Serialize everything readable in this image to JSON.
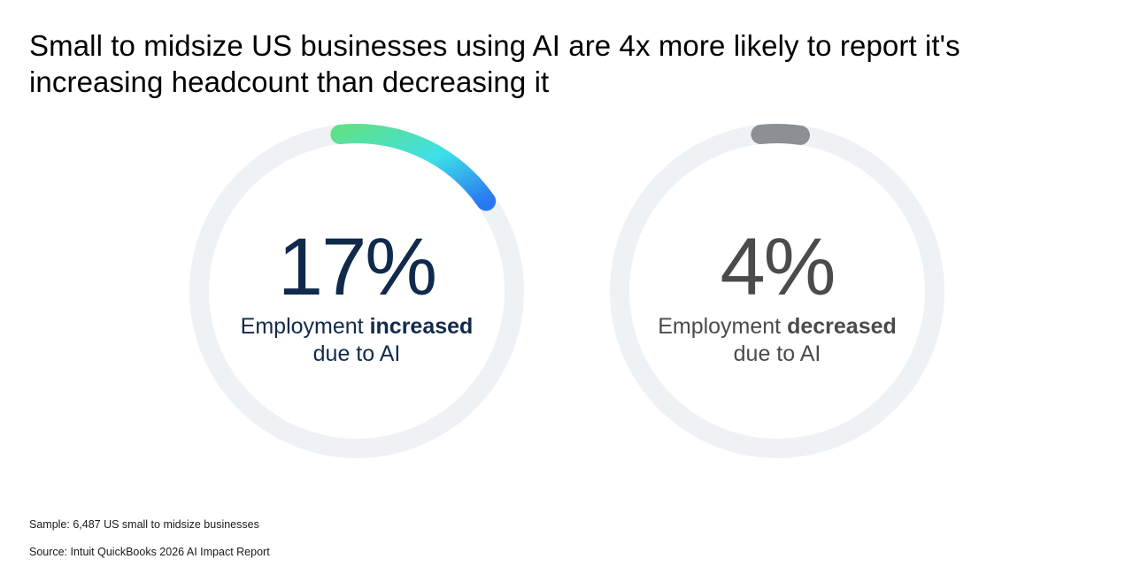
{
  "title": "Small to midsize US businesses using AI are 4x more likely to report it's increasing headcount than decreasing it",
  "gauges": [
    {
      "value": 17,
      "value_label": "17%",
      "caption_prefix": "Employment",
      "caption_bold": "increased",
      "caption_line2": "due to AI",
      "arc_colors": [
        "#5ee08c",
        "#3ee0e8",
        "#2a78f0"
      ],
      "text_color": "#102a4c"
    },
    {
      "value": 4,
      "value_label": "4%",
      "caption_prefix": "Employment",
      "caption_bold": "decreased",
      "caption_line2": "due to AI",
      "arc_colors": [
        "#8c8f93"
      ],
      "text_color": "#4b4b4b"
    }
  ],
  "track_color": "#eef2f5",
  "chart_data": [
    {
      "type": "pie",
      "categories": [
        "Employment increased due to AI"
      ],
      "values": [
        17
      ],
      "unit": "%",
      "max": 100
    },
    {
      "type": "pie",
      "categories": [
        "Employment decreased due to AI"
      ],
      "values": [
        4
      ],
      "unit": "%",
      "max": 100
    }
  ],
  "footnotes": {
    "sample": "Sample: 6,487 US small to midsize businesses",
    "source": "Source: Intuit QuickBooks 2026 AI Impact Report"
  }
}
